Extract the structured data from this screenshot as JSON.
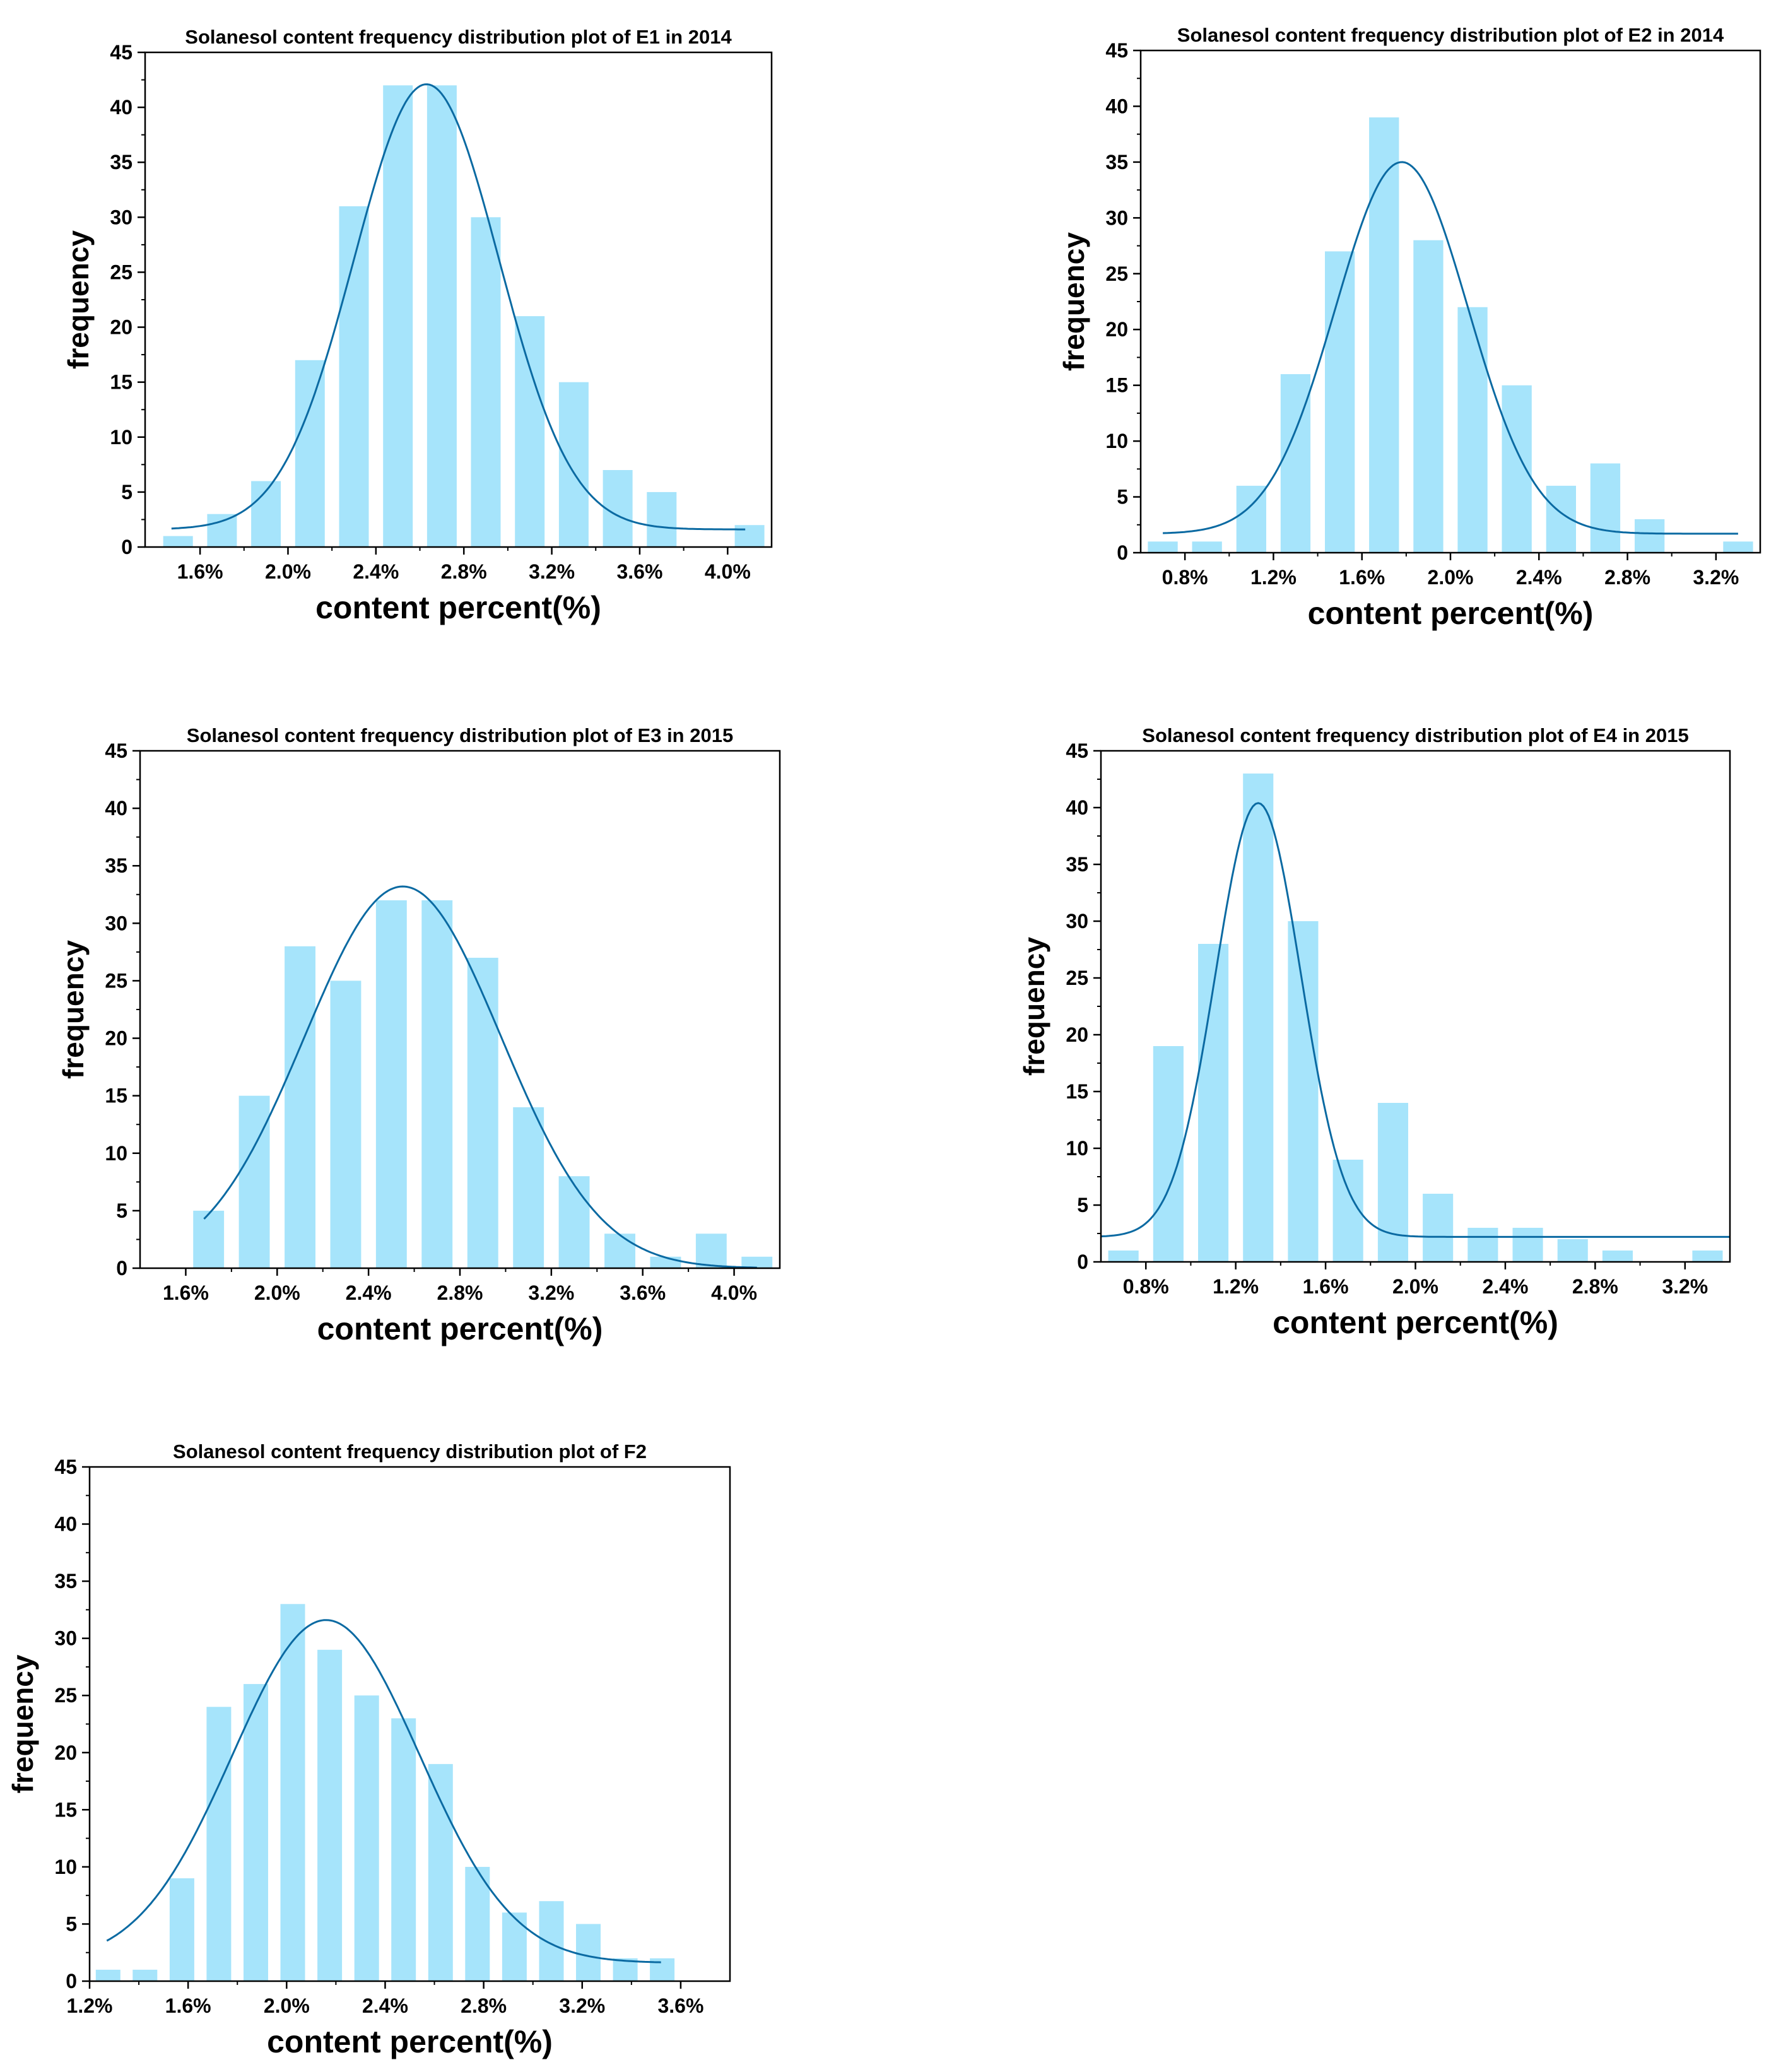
{
  "colors": {
    "bar": "#a6e4fb",
    "curve": "#0b6aa2",
    "axis": "#000000"
  },
  "chart_data": [
    {
      "id": "e1-2014",
      "type": "bar",
      "overlay": "normal-fit-line",
      "title": "Solanesol content frequency distribution plot of E1 in 2014",
      "xlabel": "content percent(%)",
      "ylabel": "frequency",
      "xlim": [
        1.35,
        4.2
      ],
      "ylim": [
        0,
        45
      ],
      "yticks": [
        0,
        5,
        10,
        15,
        20,
        25,
        30,
        35,
        40,
        45
      ],
      "xticks": [
        {
          "v": 1.6,
          "label": "1.6%"
        },
        {
          "v": 2.0,
          "label": "2.0%"
        },
        {
          "v": 2.4,
          "label": "2.4%"
        },
        {
          "v": 2.8,
          "label": "2.8%"
        },
        {
          "v": 3.2,
          "label": "3.2%"
        },
        {
          "v": 3.6,
          "label": "3.6%"
        },
        {
          "v": 4.0,
          "label": "4.0%"
        }
      ],
      "bar_width": 0.135,
      "bars": [
        {
          "x": 1.5,
          "y": 1
        },
        {
          "x": 1.7,
          "y": 3
        },
        {
          "x": 1.9,
          "y": 6
        },
        {
          "x": 2.1,
          "y": 17
        },
        {
          "x": 2.3,
          "y": 31
        },
        {
          "x": 2.5,
          "y": 42
        },
        {
          "x": 2.7,
          "y": 42
        },
        {
          "x": 2.9,
          "y": 30
        },
        {
          "x": 3.1,
          "y": 21
        },
        {
          "x": 3.3,
          "y": 15
        },
        {
          "x": 3.5,
          "y": 7
        },
        {
          "x": 3.7,
          "y": 5
        },
        {
          "x": 4.1,
          "y": 2
        }
      ],
      "curve": {
        "mu": 2.63,
        "sigma": 0.33,
        "amp": 40.5,
        "base": 1.6,
        "x_from": 1.47,
        "x_to": 4.08
      }
    },
    {
      "id": "e2-2014",
      "type": "bar",
      "overlay": "normal-fit-line",
      "title": "Solanesol content frequency distribution plot of E2 in 2014",
      "xlabel": "content percent(%)",
      "ylabel": "frequency",
      "xlim": [
        0.6,
        3.4
      ],
      "ylim": [
        0,
        45
      ],
      "yticks": [
        0,
        5,
        10,
        15,
        20,
        25,
        30,
        35,
        40,
        45
      ],
      "xticks": [
        {
          "v": 0.8,
          "label": "0.8%"
        },
        {
          "v": 1.2,
          "label": "1.2%"
        },
        {
          "v": 1.6,
          "label": "1.6%"
        },
        {
          "v": 2.0,
          "label": "2.0%"
        },
        {
          "v": 2.4,
          "label": "2.4%"
        },
        {
          "v": 2.8,
          "label": "2.8%"
        },
        {
          "v": 3.2,
          "label": "3.2%"
        }
      ],
      "bar_width": 0.135,
      "bars": [
        {
          "x": 0.7,
          "y": 1
        },
        {
          "x": 0.9,
          "y": 1
        },
        {
          "x": 1.1,
          "y": 6
        },
        {
          "x": 1.3,
          "y": 16
        },
        {
          "x": 1.5,
          "y": 27
        },
        {
          "x": 1.7,
          "y": 39
        },
        {
          "x": 1.9,
          "y": 28
        },
        {
          "x": 2.1,
          "y": 22
        },
        {
          "x": 2.3,
          "y": 15
        },
        {
          "x": 2.5,
          "y": 6
        },
        {
          "x": 2.7,
          "y": 8
        },
        {
          "x": 2.9,
          "y": 3
        },
        {
          "x": 3.3,
          "y": 1
        }
      ],
      "curve": {
        "mu": 1.78,
        "sigma": 0.3,
        "amp": 33.3,
        "base": 1.7,
        "x_from": 0.7,
        "x_to": 3.3
      }
    },
    {
      "id": "e3-2015",
      "type": "bar",
      "overlay": "normal-fit-line",
      "title": "Solanesol content frequency distribution plot of E3 in 2015",
      "xlabel": "content percent(%)",
      "ylabel": "frequency",
      "xlim": [
        1.4,
        4.2
      ],
      "ylim": [
        0,
        45
      ],
      "yticks": [
        0,
        5,
        10,
        15,
        20,
        25,
        30,
        35,
        40,
        45
      ],
      "xticks": [
        {
          "v": 1.6,
          "label": "1.6%"
        },
        {
          "v": 2.0,
          "label": "2.0%"
        },
        {
          "v": 2.4,
          "label": "2.4%"
        },
        {
          "v": 2.8,
          "label": "2.8%"
        },
        {
          "v": 3.2,
          "label": "3.2%"
        },
        {
          "v": 3.6,
          "label": "3.6%"
        },
        {
          "v": 4.0,
          "label": "4.0%"
        }
      ],
      "bar_width": 0.135,
      "bars": [
        {
          "x": 1.7,
          "y": 5
        },
        {
          "x": 1.9,
          "y": 15
        },
        {
          "x": 2.1,
          "y": 28
        },
        {
          "x": 2.3,
          "y": 25
        },
        {
          "x": 2.5,
          "y": 32
        },
        {
          "x": 2.7,
          "y": 32
        },
        {
          "x": 2.9,
          "y": 27
        },
        {
          "x": 3.1,
          "y": 14
        },
        {
          "x": 3.3,
          "y": 8
        },
        {
          "x": 3.5,
          "y": 3
        },
        {
          "x": 3.7,
          "y": 1
        },
        {
          "x": 3.9,
          "y": 3
        },
        {
          "x": 4.1,
          "y": 1
        }
      ],
      "curve": {
        "mu": 2.55,
        "sigma": 0.43,
        "amp": 33.2,
        "base": 0,
        "x_from": 1.68,
        "x_to": 4.1
      }
    },
    {
      "id": "e4-2015",
      "type": "bar",
      "overlay": "normal-fit-line",
      "title": "Solanesol content frequency distribution plot of E4 in 2015",
      "xlabel": "content percent(%)",
      "ylabel": "frequency",
      "xlim": [
        0.6,
        3.4
      ],
      "ylim": [
        0,
        45
      ],
      "yticks": [
        0,
        5,
        10,
        15,
        20,
        25,
        30,
        35,
        40,
        45
      ],
      "xticks": [
        {
          "v": 0.8,
          "label": "0.8%"
        },
        {
          "v": 1.2,
          "label": "1.2%"
        },
        {
          "v": 1.6,
          "label": "1.6%"
        },
        {
          "v": 2.0,
          "label": "2.0%"
        },
        {
          "v": 2.4,
          "label": "2.4%"
        },
        {
          "v": 2.8,
          "label": "2.8%"
        },
        {
          "v": 3.2,
          "label": "3.2%"
        }
      ],
      "bar_width": 0.135,
      "bars": [
        {
          "x": 0.7,
          "y": 1
        },
        {
          "x": 0.9,
          "y": 19
        },
        {
          "x": 1.1,
          "y": 28
        },
        {
          "x": 1.3,
          "y": 43
        },
        {
          "x": 1.5,
          "y": 30
        },
        {
          "x": 1.7,
          "y": 9
        },
        {
          "x": 1.9,
          "y": 14
        },
        {
          "x": 2.1,
          "y": 6
        },
        {
          "x": 2.3,
          "y": 3
        },
        {
          "x": 2.5,
          "y": 3
        },
        {
          "x": 2.7,
          "y": 2
        },
        {
          "x": 2.9,
          "y": 1
        },
        {
          "x": 3.3,
          "y": 1
        }
      ],
      "curve": {
        "mu": 1.3,
        "sigma": 0.19,
        "amp": 38.2,
        "base": 2.2,
        "x_from": 0.6,
        "x_to": 3.4
      }
    },
    {
      "id": "f2",
      "type": "bar",
      "overlay": "normal-fit-line",
      "title": "Solanesol content frequency distribution plot of F2",
      "xlabel": "content percent(%)",
      "ylabel": "frequency",
      "xlim": [
        1.2,
        3.8
      ],
      "ylim": [
        0,
        45
      ],
      "yticks": [
        0,
        5,
        10,
        15,
        20,
        25,
        30,
        35,
        40,
        45
      ],
      "xticks": [
        {
          "v": 1.2,
          "label": "1.2%"
        },
        {
          "v": 1.6,
          "label": "1.6%"
        },
        {
          "v": 2.0,
          "label": "2.0%"
        },
        {
          "v": 2.4,
          "label": "2.4%"
        },
        {
          "v": 2.8,
          "label": "2.8%"
        },
        {
          "v": 3.2,
          "label": "3.2%"
        },
        {
          "v": 3.6,
          "label": "3.6%"
        }
      ],
      "bar_width": 0.1,
      "bars": [
        {
          "x": 1.275,
          "y": 1
        },
        {
          "x": 1.425,
          "y": 1
        },
        {
          "x": 1.575,
          "y": 9
        },
        {
          "x": 1.725,
          "y": 24
        },
        {
          "x": 1.875,
          "y": 26
        },
        {
          "x": 2.025,
          "y": 33
        },
        {
          "x": 2.175,
          "y": 29
        },
        {
          "x": 2.325,
          "y": 25
        },
        {
          "x": 2.475,
          "y": 23
        },
        {
          "x": 2.625,
          "y": 19
        },
        {
          "x": 2.775,
          "y": 10
        },
        {
          "x": 2.925,
          "y": 6
        },
        {
          "x": 3.075,
          "y": 7
        },
        {
          "x": 3.225,
          "y": 5
        },
        {
          "x": 3.375,
          "y": 2
        },
        {
          "x": 3.525,
          "y": 2
        }
      ],
      "curve": {
        "mu": 2.16,
        "sigma": 0.38,
        "amp": 30.0,
        "base": 1.6,
        "x_from": 1.27,
        "x_to": 3.52
      }
    }
  ]
}
